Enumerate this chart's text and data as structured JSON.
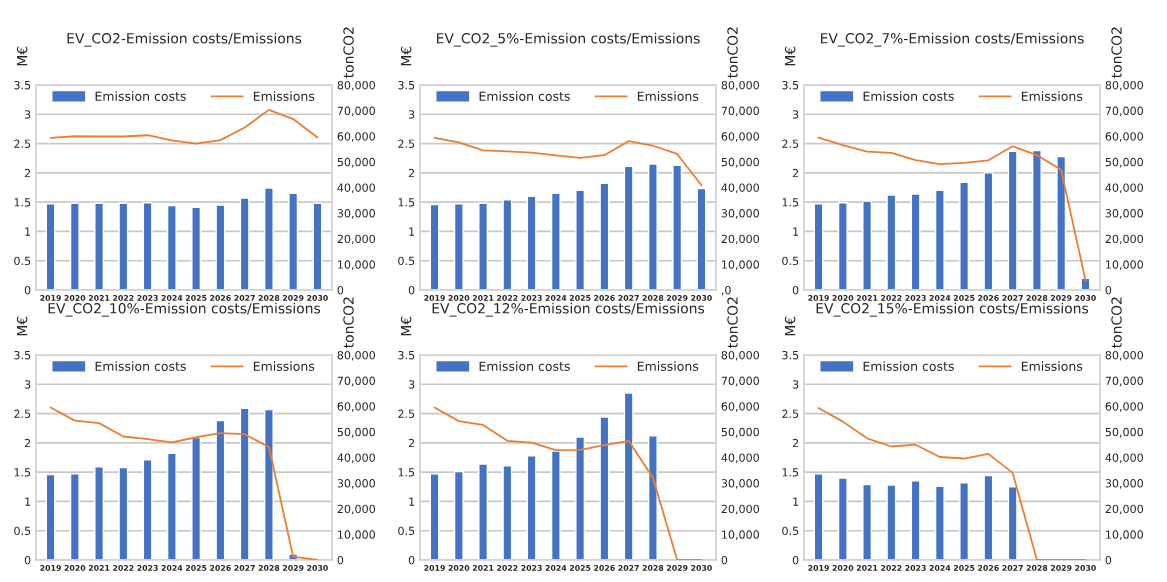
{
  "chart_data": [
    {
      "type": "bar",
      "title": "EV_CO2-Emission costs/Emissions",
      "ylabel": "M€",
      "y2label": "tonCO2",
      "categories": [
        "2019",
        "2020",
        "2021",
        "2022",
        "2023",
        "2024",
        "2025",
        "2026",
        "2027",
        "2028",
        "2029",
        "2030"
      ],
      "series": [
        {
          "name": "Emission costs",
          "color": "#4472c4",
          "values": [
            1.47,
            1.48,
            1.48,
            1.48,
            1.49,
            1.44,
            1.41,
            1.45,
            1.57,
            1.74,
            1.65,
            1.48
          ]
        },
        {
          "name": "Emissions",
          "type": "line",
          "axis": "y2",
          "color": "#ed7d31",
          "values": [
            59400,
            60000,
            59900,
            59900,
            60400,
            58400,
            57100,
            58500,
            63400,
            70300,
            66700,
            59500
          ]
        }
      ],
      "ylim": [
        0,
        3.5
      ],
      "yticks": [
        0,
        0.5,
        1,
        1.5,
        2,
        2.5,
        3,
        3.5
      ],
      "y2lim": [
        0,
        80000
      ],
      "y2ticks": [
        0,
        {
          "value": 10000,
          "label": "10,000"
        },
        {
          "value": 20000,
          "label": "20,000"
        },
        {
          "value": 30000,
          "label": "30,000"
        },
        {
          "value": 40000,
          "label": "40,000"
        },
        {
          "value": 50000,
          "label": "50,000"
        },
        {
          "value": 60000,
          "label": "60,000"
        },
        {
          "value": 70000,
          "label": "70,000"
        },
        {
          "value": 80000,
          "label": "80,000"
        }
      ],
      "grid": "y",
      "legend": "top"
    },
    {
      "type": "bar",
      "title": "EV_CO2_5%-Emission costs/Emissions",
      "ylabel": "M€",
      "y2label": "tonCO2",
      "categories": [
        "2019",
        "2020",
        "2021",
        "2022",
        "2023",
        "2024",
        "2025",
        "2026",
        "2027",
        "2028",
        "2029",
        "2030"
      ],
      "series": [
        {
          "name": "Emission costs",
          "color": "#4472c4",
          "values": [
            1.46,
            1.47,
            1.48,
            1.54,
            1.6,
            1.65,
            1.7,
            1.82,
            2.11,
            2.15,
            2.13,
            1.73
          ]
        },
        {
          "name": "Emissions",
          "type": "line",
          "axis": "y2",
          "color": "#ed7d31",
          "values": [
            59400,
            57600,
            54500,
            54100,
            53600,
            52500,
            51600,
            52600,
            58100,
            56300,
            53100,
            40900
          ]
        }
      ],
      "ylim": [
        0,
        3.5
      ],
      "yticks": [
        0,
        0.5,
        1,
        1.5,
        2,
        2.5,
        3,
        3.5
      ],
      "y2lim": [
        0,
        80000
      ],
      "y2ticks": [
        {
          "value": 0,
          "label": ",0"
        },
        {
          "value": 10000,
          "label": "10,000"
        },
        {
          "value": 20000,
          "label": "20,000"
        },
        {
          "value": 30000,
          "label": "30,000"
        },
        {
          "value": 40000,
          "label": "40,000"
        },
        {
          "value": 50000,
          "label": "50,000"
        },
        {
          "value": 60000,
          "label": "60,000"
        },
        {
          "value": 70000,
          "label": "70,000"
        },
        {
          "value": 80000,
          "label": "80,000"
        }
      ],
      "grid": "y",
      "legend": "top"
    },
    {
      "type": "bar",
      "title": "EV_CO2_7%-Emission costs/Emissions",
      "ylabel": "M€",
      "y2label": "tonCO2",
      "categories": [
        "2019",
        "2020",
        "2021",
        "2022",
        "2023",
        "2024",
        "2025",
        "2026",
        "2027",
        "2028",
        "2029",
        "2030"
      ],
      "series": [
        {
          "name": "Emission costs",
          "color": "#4472c4",
          "values": [
            1.47,
            1.49,
            1.52,
            1.62,
            1.64,
            1.7,
            1.84,
            2.0,
            2.37,
            2.38,
            2.28,
            0.2
          ]
        },
        {
          "name": "Emissions",
          "type": "line",
          "axis": "y2",
          "color": "#ed7d31",
          "values": [
            59500,
            56500,
            54000,
            53500,
            50700,
            49100,
            49600,
            50600,
            56100,
            52600,
            46900,
            3800
          ]
        }
      ],
      "ylim": [
        0,
        3.5
      ],
      "yticks": [
        0,
        0.5,
        1,
        1.5,
        2,
        2.5,
        3,
        3.5
      ],
      "y2lim": [
        0,
        80000
      ],
      "y2ticks": [
        0,
        {
          "value": 10000,
          "label": "10,000"
        },
        {
          "value": 20000,
          "label": "20,000"
        },
        {
          "value": 30000,
          "label": "30,000"
        },
        {
          "value": 40000,
          "label": "40,000"
        },
        {
          "value": 50000,
          "label": "50,000"
        },
        {
          "value": 60000,
          "label": "60,000"
        },
        {
          "value": 70000,
          "label": "70,000"
        },
        {
          "value": 80000,
          "label": "80,000"
        }
      ],
      "grid": "y",
      "legend": "top"
    },
    {
      "type": "bar",
      "title": "EV_CO2_10%-Emission costs/Emissions",
      "ylabel": "M€",
      "y2label": "tonCO2",
      "categories": [
        "2019",
        "2020",
        "2021",
        "2022",
        "2023",
        "2024",
        "2025",
        "2026",
        "2027",
        "2028",
        "2029",
        "2030"
      ],
      "series": [
        {
          "name": "Emission costs",
          "color": "#4472c4",
          "values": [
            1.46,
            1.47,
            1.59,
            1.58,
            1.71,
            1.82,
            2.09,
            2.38,
            2.59,
            2.57,
            0.1,
            null
          ]
        },
        {
          "name": "Emissions",
          "type": "line",
          "axis": "y2",
          "color": "#ed7d31",
          "values": [
            59500,
            54400,
            53400,
            48200,
            47200,
            45900,
            47900,
            49500,
            49100,
            44100,
            1300,
            0
          ]
        }
      ],
      "ylim": [
        0,
        3.5
      ],
      "yticks": [
        0,
        0.5,
        1,
        1.5,
        2,
        2.5,
        3,
        3.5
      ],
      "y2lim": [
        0,
        80000
      ],
      "y2ticks": [
        0,
        {
          "value": 10000,
          "label": "10,000"
        },
        {
          "value": 20000,
          "label": "20,000"
        },
        {
          "value": 30000,
          "label": "30,000"
        },
        {
          "value": 40000,
          "label": "40,000"
        },
        {
          "value": 50000,
          "label": "50,000"
        },
        {
          "value": 60000,
          "label": "60,000"
        },
        {
          "value": 70000,
          "label": "70,000"
        },
        {
          "value": 80000,
          "label": "80,000"
        }
      ],
      "grid": "y",
      "legend": "top"
    },
    {
      "type": "bar",
      "title": "EV_CO2_12%-Emission costs/Emissions",
      "ylabel": "M€",
      "y2label": "tonCO2",
      "categories": [
        "2019",
        "2020",
        "2021",
        "2022",
        "2023",
        "2024",
        "2025",
        "2026",
        "2027",
        "2028",
        "2029",
        "2030"
      ],
      "series": [
        {
          "name": "Emission costs",
          "color": "#4472c4",
          "values": [
            1.47,
            1.51,
            1.64,
            1.61,
            1.78,
            1.86,
            2.1,
            2.44,
            2.85,
            2.12,
            null,
            null
          ]
        },
        {
          "name": "Emissions",
          "type": "line",
          "axis": "y2",
          "color": "#ed7d31",
          "values": [
            59500,
            54200,
            52700,
            46500,
            45800,
            42900,
            43000,
            44800,
            46500,
            32100,
            0,
            0
          ]
        }
      ],
      "ylim": [
        0,
        3.5
      ],
      "yticks": [
        0,
        0.5,
        1,
        1.5,
        2,
        2.5,
        3,
        3.5
      ],
      "y2lim": [
        0,
        80000
      ],
      "y2ticks": [
        0,
        {
          "value": 10000,
          "label": "10,000"
        },
        {
          "value": 20000,
          "label": "20,000"
        },
        {
          "value": 30000,
          "label": "30,000"
        },
        {
          "value": 40000,
          "label": "40,000"
        },
        {
          "value": 50000,
          "label": "50,000"
        },
        {
          "value": 60000,
          "label": "60,000"
        },
        {
          "value": 70000,
          "label": "70,000"
        },
        {
          "value": 80000,
          "label": "80,000"
        }
      ],
      "grid": "y",
      "legend": "top"
    },
    {
      "type": "bar",
      "title": "EV_CO2_15%-Emission costs/Emissions",
      "ylabel": "M€",
      "y2label": "tonCO2",
      "categories": [
        "2019",
        "2020",
        "2021",
        "2022",
        "2023",
        "2024",
        "2025",
        "2026",
        "2027",
        "2028",
        "2029",
        "2030"
      ],
      "series": [
        {
          "name": "Emission costs",
          "color": "#4472c4",
          "values": [
            1.47,
            1.4,
            1.29,
            1.28,
            1.35,
            1.26,
            1.32,
            1.44,
            1.25,
            null,
            null,
            null
          ]
        },
        {
          "name": "Emissions",
          "type": "line",
          "axis": "y2",
          "color": "#ed7d31",
          "values": [
            59300,
            54000,
            47500,
            44300,
            45000,
            40200,
            39600,
            41400,
            34000,
            0,
            0,
            0
          ]
        }
      ],
      "ylim": [
        0,
        3.5
      ],
      "yticks": [
        0,
        0.5,
        1,
        1.5,
        2,
        2.5,
        3,
        3.5
      ],
      "y2lim": [
        0,
        80000
      ],
      "y2ticks": [
        0,
        {
          "value": 10000,
          "label": "10,000"
        },
        {
          "value": 20000,
          "label": "20,000"
        },
        {
          "value": 30000,
          "label": "30,000"
        },
        {
          "value": 40000,
          "label": "40,000"
        },
        {
          "value": 50000,
          "label": "50,000"
        },
        {
          "value": 60000,
          "label": "60,000"
        },
        {
          "value": 70000,
          "label": "70,000"
        },
        {
          "value": 80000,
          "label": "80,000"
        }
      ],
      "grid": "y",
      "legend": "top"
    }
  ]
}
